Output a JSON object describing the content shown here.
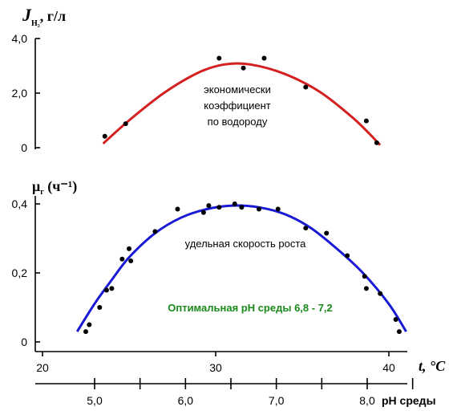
{
  "chart_data": [
    {
      "type": "line",
      "ylabel_main": "J",
      "ylabel_sub": "H₂",
      "ylabel_unit": ",  г/л",
      "ylim": [
        0,
        4.0
      ],
      "yticks": [
        {
          "value": 0,
          "label": "0"
        },
        {
          "value": 2.0,
          "label": "2,0"
        },
        {
          "value": 4.0,
          "label": "4,0"
        }
      ],
      "annotation": [
        "экономически",
        "коэффициент",
        "по водороду"
      ],
      "series": [
        {
          "color": "#d42020",
          "curve": {
            "x": [
              23.5,
              25,
              27,
              29,
              30.5,
              32,
              34,
              36,
              38,
              39.5
            ],
            "y": [
              0.15,
              1.0,
              2.0,
              2.75,
              3.05,
              3.05,
              2.7,
              2.05,
              1.05,
              0.1
            ]
          },
          "points": {
            "x": [
              23.6,
              24.8,
              30.2,
              31.6,
              32.8,
              35.2,
              38.7,
              39.3
            ],
            "y": [
              0.42,
              0.88,
              3.28,
              2.92,
              3.28,
              2.22,
              0.98,
              0.18
            ]
          }
        }
      ]
    },
    {
      "type": "line",
      "ylabel_main": "μ",
      "ylabel_sub": "г",
      "ylabel_unit": " (ч⁻¹)",
      "xlabel": "t, °C",
      "xlim": [
        20,
        42
      ],
      "ylim": [
        0,
        0.4
      ],
      "xticks": [
        {
          "value": 20,
          "label": "20"
        },
        {
          "value": 30,
          "label": "30"
        },
        {
          "value": 40,
          "label": "40"
        }
      ],
      "yticks": [
        {
          "value": 0,
          "label": "0"
        },
        {
          "value": 0.2,
          "label": "0,2"
        },
        {
          "value": 0.4,
          "label": "0,4"
        }
      ],
      "annotation": "удельная скорость роста",
      "note": "Оптимальная рН среды  6,8 - 7,2",
      "series": [
        {
          "color": "#1a1ad4",
          "curve": {
            "x": [
              22,
              23,
              24,
              25,
              26.5,
              28,
              29.5,
              31,
              32.5,
              34,
              35.5,
              37,
              38.5,
              40,
              41
            ],
            "y": [
              0.03,
              0.11,
              0.18,
              0.245,
              0.315,
              0.36,
              0.385,
              0.395,
              0.39,
              0.37,
              0.33,
              0.27,
              0.2,
              0.11,
              0.03
            ]
          },
          "points": {
            "x": [
              22.5,
              22.7,
              23.3,
              23.7,
              24.0,
              24.6,
              25.0,
              25.1,
              26.5,
              27.8,
              29.3,
              29.6,
              30.2,
              31.1,
              31.5,
              32.5,
              33.6,
              35.2,
              36.4,
              37.6,
              38.6,
              38.7,
              39.5,
              40.4,
              40.6
            ],
            "y": [
              0.03,
              0.05,
              0.1,
              0.15,
              0.155,
              0.24,
              0.27,
              0.235,
              0.32,
              0.385,
              0.375,
              0.395,
              0.39,
              0.4,
              0.39,
              0.385,
              0.385,
              0.33,
              0.315,
              0.25,
              0.19,
              0.155,
              0.14,
              0.065,
              0.03
            ]
          }
        }
      ]
    }
  ],
  "ph_axis": {
    "title": "рН среды",
    "ticks": [
      {
        "value": 5.0,
        "label": "5,0"
      },
      {
        "value": 6.0,
        "label": "6,0"
      },
      {
        "value": 7.0,
        "label": "7,0"
      },
      {
        "value": 8.0,
        "label": "8,0"
      }
    ],
    "minor_ticks": [
      5.5,
      6.5,
      7.5,
      8.5
    ]
  }
}
